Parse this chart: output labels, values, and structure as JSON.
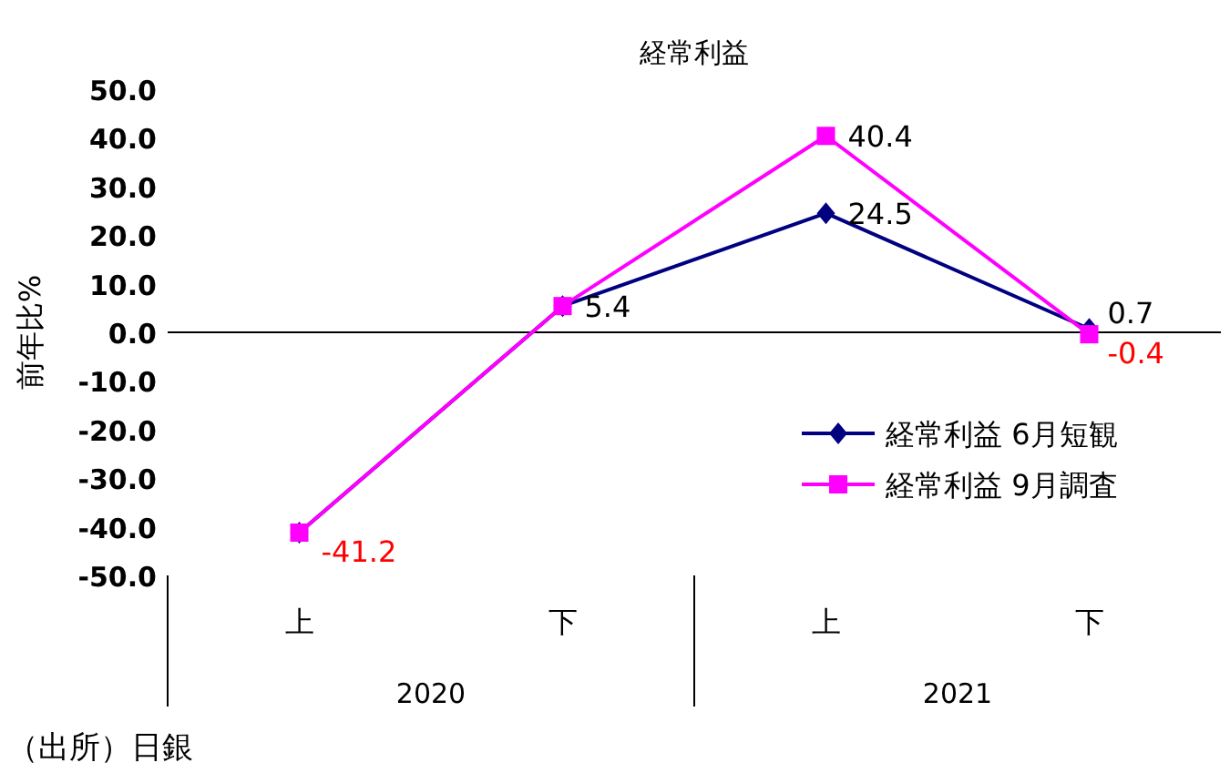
{
  "chart_data": {
    "type": "line",
    "title": "経常利益",
    "ylabel": "前年比%",
    "categories": [
      "上",
      "下",
      "上",
      "下"
    ],
    "series": [
      {
        "name": "経常利益 6月短観",
        "color": "#000080",
        "marker": "diamond",
        "values": [
          -41.2,
          5.4,
          24.5,
          0.7
        ],
        "value_labels": [
          null,
          null,
          "24.5",
          "0.7"
        ]
      },
      {
        "name": "経常利益 9月調査",
        "color": "#ff00ff",
        "marker": "square",
        "values": [
          -41.2,
          5.4,
          40.4,
          -0.4
        ],
        "value_labels": [
          "-41.2",
          "5.4",
          "40.4",
          "-0.4"
        ]
      }
    ],
    "ylim": [
      -50,
      50
    ],
    "yticks": [
      {
        "value": 50,
        "label": "50.0"
      },
      {
        "value": 40,
        "label": "40.0"
      },
      {
        "value": 30,
        "label": "30.0"
      },
      {
        "value": 20,
        "label": "20.0"
      },
      {
        "value": 10,
        "label": "10.0"
      },
      {
        "value": 0,
        "label": "0.0"
      },
      {
        "value": -10,
        "label": "-10.0"
      },
      {
        "value": -20,
        "label": "-20.0"
      },
      {
        "value": -30,
        "label": "-30.0"
      },
      {
        "value": -40,
        "label": "-40.0"
      },
      {
        "value": -50,
        "label": "-50.0"
      }
    ],
    "legend": "bottom right",
    "annotations": [
      "2020",
      "2021",
      "（出所）日銀"
    ]
  }
}
